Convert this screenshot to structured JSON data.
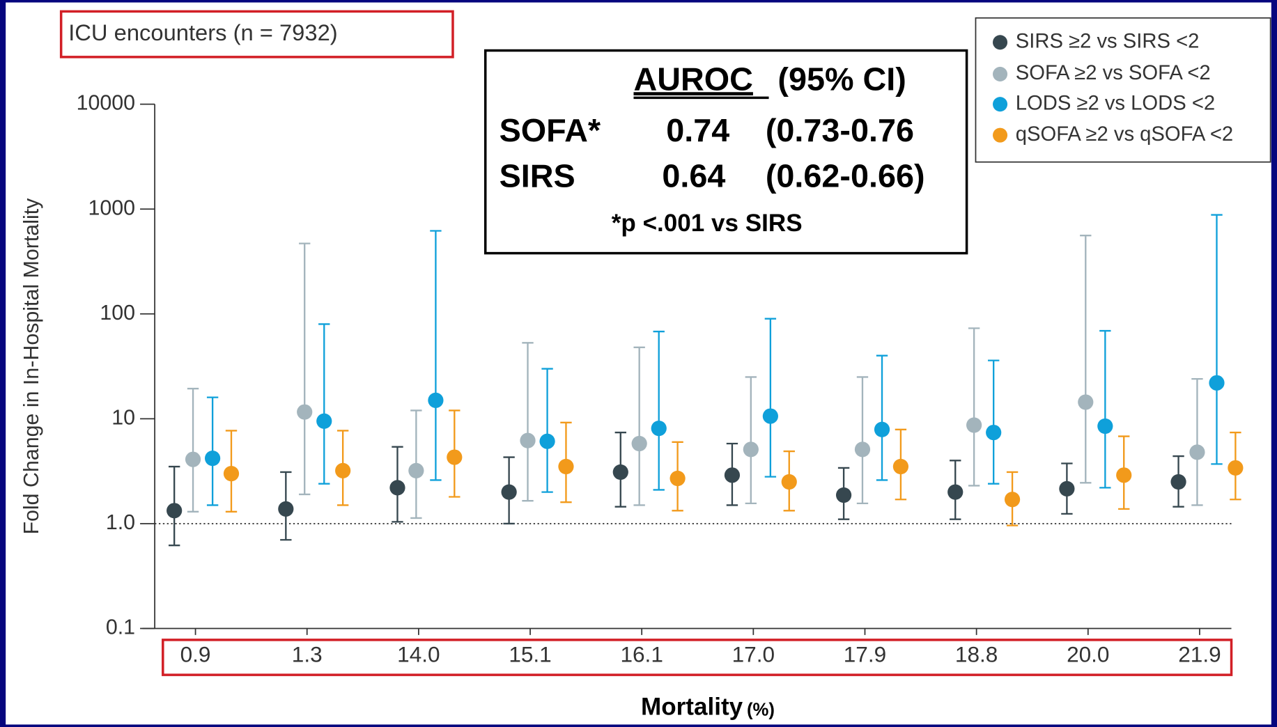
{
  "chart_data": {
    "type": "dot_whisker",
    "annotation": "ICU encounters (n = 7932)",
    "xlabel": "Mortality",
    "xlabel_unit": "(%)",
    "ylabel": "Fold Change in In-Hospital Mortality",
    "log_scale": true,
    "ylim": [
      0.1,
      10000
    ],
    "yticks": [
      0.1,
      {
        "value": 1,
        "label": "1.0"
      },
      10,
      100,
      1000,
      10000
    ],
    "reference_line": 1,
    "legend_position": "top-right",
    "categories": [
      "0.9",
      "1.3",
      "14.0",
      "15.1",
      "16.1",
      "17.0",
      "17.9",
      "18.8",
      "20.0",
      "21.9"
    ],
    "series": [
      {
        "name": "SIRS ≥2 vs SIRS <2",
        "color": "#36474f",
        "values": [
          1.33,
          1.38,
          2.2,
          2.0,
          3.1,
          2.9,
          1.87,
          2.0,
          2.15,
          2.5
        ],
        "lower": [
          0.62,
          0.7,
          1.04,
          1.0,
          1.45,
          1.5,
          1.1,
          1.1,
          1.24,
          1.45
        ],
        "upper": [
          3.5,
          3.1,
          5.4,
          4.3,
          7.4,
          5.8,
          3.4,
          4.0,
          3.75,
          4.4
        ]
      },
      {
        "name": "SOFA ≥2 vs SOFA <2",
        "color": "#a3b4bc",
        "values": [
          4.1,
          11.6,
          3.2,
          6.2,
          5.8,
          5.1,
          5.1,
          8.7,
          14.4,
          4.8
        ],
        "lower": [
          1.3,
          1.9,
          1.13,
          1.65,
          1.5,
          1.56,
          1.56,
          2.3,
          2.45,
          1.5
        ],
        "upper": [
          19.4,
          470,
          12,
          53,
          48,
          25,
          25,
          73,
          560,
          24
        ]
      },
      {
        "name": "LODS ≥2 vs LODS <2",
        "color": "#0fa0da",
        "values": [
          4.2,
          9.5,
          15,
          6.1,
          8.1,
          10.6,
          7.9,
          7.4,
          8.5,
          22
        ],
        "lower": [
          1.5,
          2.4,
          2.6,
          2.0,
          2.1,
          2.8,
          2.6,
          2.4,
          2.2,
          3.7
        ],
        "upper": [
          16,
          80,
          620,
          30,
          68,
          90,
          40,
          36,
          69,
          880
        ]
      },
      {
        "name": "qSOFA ≥2 vs qSOFA <2",
        "color": "#f29a1b",
        "values": [
          3.0,
          3.2,
          4.3,
          3.5,
          2.7,
          2.5,
          3.5,
          1.7,
          2.9,
          3.4
        ],
        "lower": [
          1.3,
          1.5,
          1.8,
          1.6,
          1.33,
          1.33,
          1.7,
          0.96,
          1.38,
          1.7
        ],
        "upper": [
          7.7,
          7.7,
          12,
          9.2,
          6.0,
          4.9,
          7.9,
          3.1,
          6.8,
          7.4
        ]
      }
    ],
    "annotation_table": {
      "header": [
        "AUROC",
        "(95% CI)"
      ],
      "rows": [
        [
          "SOFA*",
          "0.74",
          "(0.73-0.76"
        ],
        [
          "SIRS",
          "0.64",
          "(0.62-0.66)"
        ]
      ],
      "note": "*p <.001 vs SIRS"
    }
  }
}
